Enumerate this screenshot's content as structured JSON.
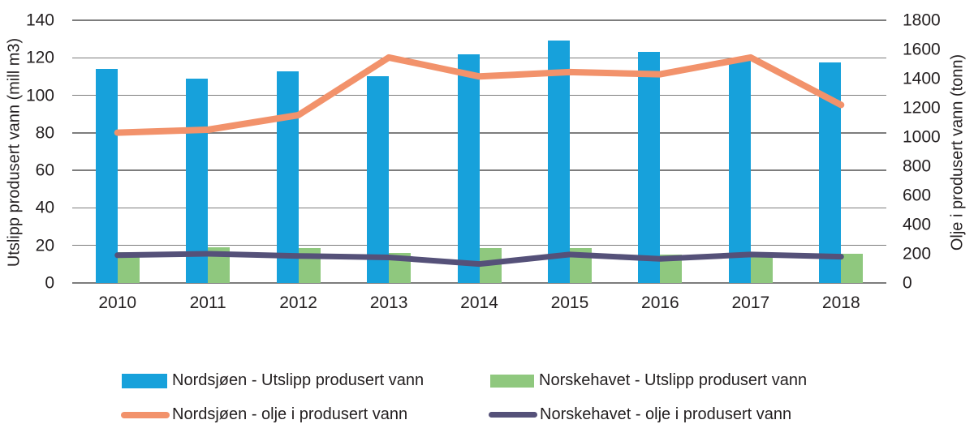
{
  "chart_data": {
    "type": "bar+line (dual axis)",
    "categories": [
      "2010",
      "2011",
      "2012",
      "2013",
      "2014",
      "2015",
      "2016",
      "2017",
      "2018"
    ],
    "left_axis": {
      "title": "Utslipp produsert vann (mill m3)",
      "min": 0,
      "max": 140,
      "step": 20,
      "ticks": [
        0,
        20,
        40,
        60,
        80,
        100,
        120,
        140
      ]
    },
    "right_axis": {
      "title": "Olje i produsert vann (tonn)",
      "min": 0,
      "max": 1800,
      "step": 200,
      "ticks": [
        0,
        200,
        400,
        600,
        800,
        1000,
        1200,
        1400,
        1600,
        1800
      ]
    },
    "grid": true,
    "legend_position": "bottom",
    "series": [
      {
        "name": "Nordsjøen - Utslipp produsert vann",
        "type": "bar",
        "axis": "left",
        "color": "#17A1DB",
        "values": [
          114,
          109,
          113,
          110,
          122,
          129,
          123,
          119,
          117.5
        ]
      },
      {
        "name": "Norskehavet - Utslipp produsert vann",
        "type": "bar",
        "axis": "left",
        "color": "#8FC87E",
        "values": [
          16.5,
          19,
          18.5,
          16,
          18.5,
          18.5,
          15,
          14.5,
          15.5
        ]
      },
      {
        "name": "Nordsjøen - olje i produsert vann",
        "type": "line",
        "axis": "right",
        "color": "#F2926B",
        "values": [
          1030,
          1050,
          1150,
          1545,
          1415,
          1445,
          1430,
          1545,
          1220
        ]
      },
      {
        "name": "Norskehavet - olje i produsert vann",
        "type": "line",
        "axis": "right",
        "color": "#555179",
        "values": [
          190,
          200,
          185,
          175,
          130,
          195,
          165,
          195,
          180
        ]
      }
    ]
  },
  "colors": {
    "background": "#FFFFFF",
    "grid": "#7D7D7D",
    "text": "#231F20"
  }
}
